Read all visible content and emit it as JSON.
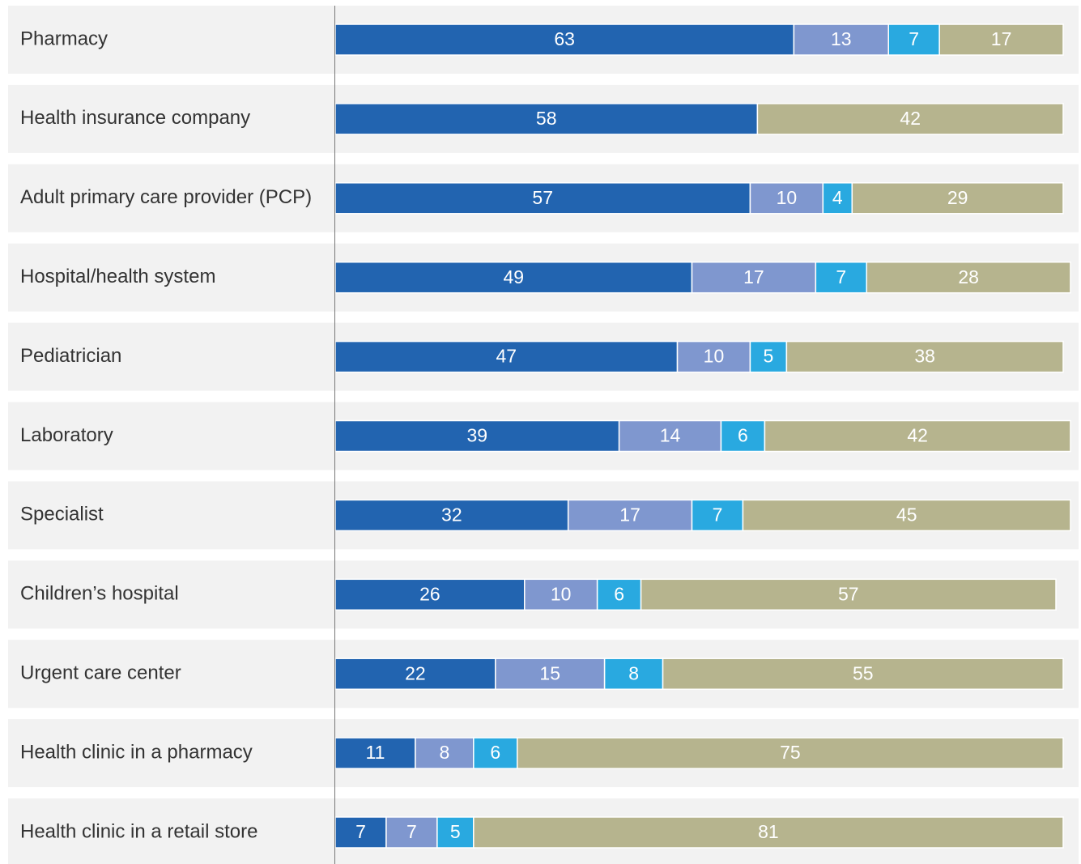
{
  "chart_data": {
    "type": "stacked-bar-horizontal",
    "categories": [
      "Pharmacy",
      "Health insurance company",
      "Adult primary care provider (PCP)",
      "Hospital/health system",
      "Pediatrician",
      "Laboratory",
      "Specialist",
      "Children’s hospital",
      "Urgent care center",
      "Health clinic in a pharmacy",
      "Health clinic in a retail store"
    ],
    "xlim": [
      0,
      100
    ],
    "series": [
      {
        "color": "#2264b0",
        "values": [
          63,
          58,
          57,
          49,
          47,
          39,
          32,
          26,
          22,
          11,
          7
        ]
      },
      {
        "color": "#7f97cf",
        "values": [
          13,
          null,
          10,
          17,
          10,
          14,
          17,
          10,
          15,
          8,
          7
        ]
      },
      {
        "color": "#29a9e0",
        "values": [
          7,
          null,
          4,
          7,
          5,
          6,
          7,
          6,
          8,
          6,
          5
        ]
      },
      {
        "color": "#b6b48e",
        "values": [
          17,
          42,
          29,
          28,
          38,
          42,
          45,
          57,
          55,
          75,
          81
        ]
      }
    ]
  }
}
